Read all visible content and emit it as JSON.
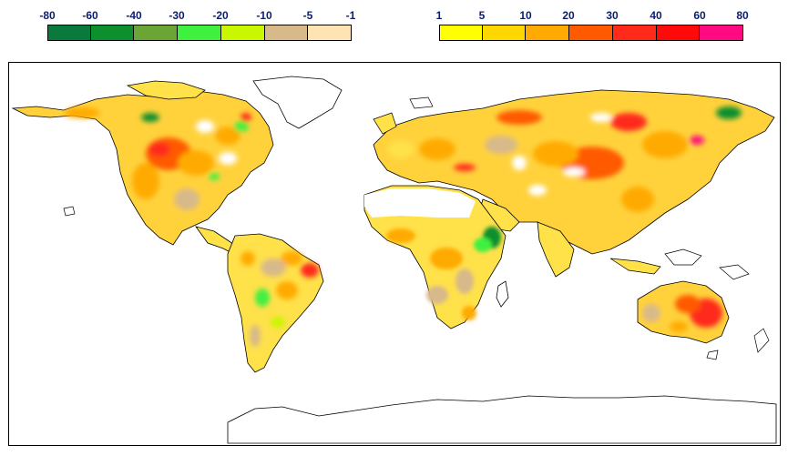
{
  "legend_negative": {
    "labels": [
      "-80",
      "-60",
      "-40",
      "-30",
      "-20",
      "-10",
      "-5",
      "-1"
    ],
    "colors": [
      "#0a7a3c",
      "#0e8f2e",
      "#6aa535",
      "#3ff03f",
      "#c8f700",
      "#d8b98a",
      "#ffe4b3"
    ]
  },
  "legend_positive": {
    "labels": [
      "1",
      "5",
      "10",
      "20",
      "30",
      "40",
      "60",
      "80"
    ],
    "colors": [
      "#ffff00",
      "#ffd700",
      "#ffaa00",
      "#ff5a00",
      "#ff2a1a",
      "#ff0a0a",
      "#ff0a80"
    ]
  }
}
